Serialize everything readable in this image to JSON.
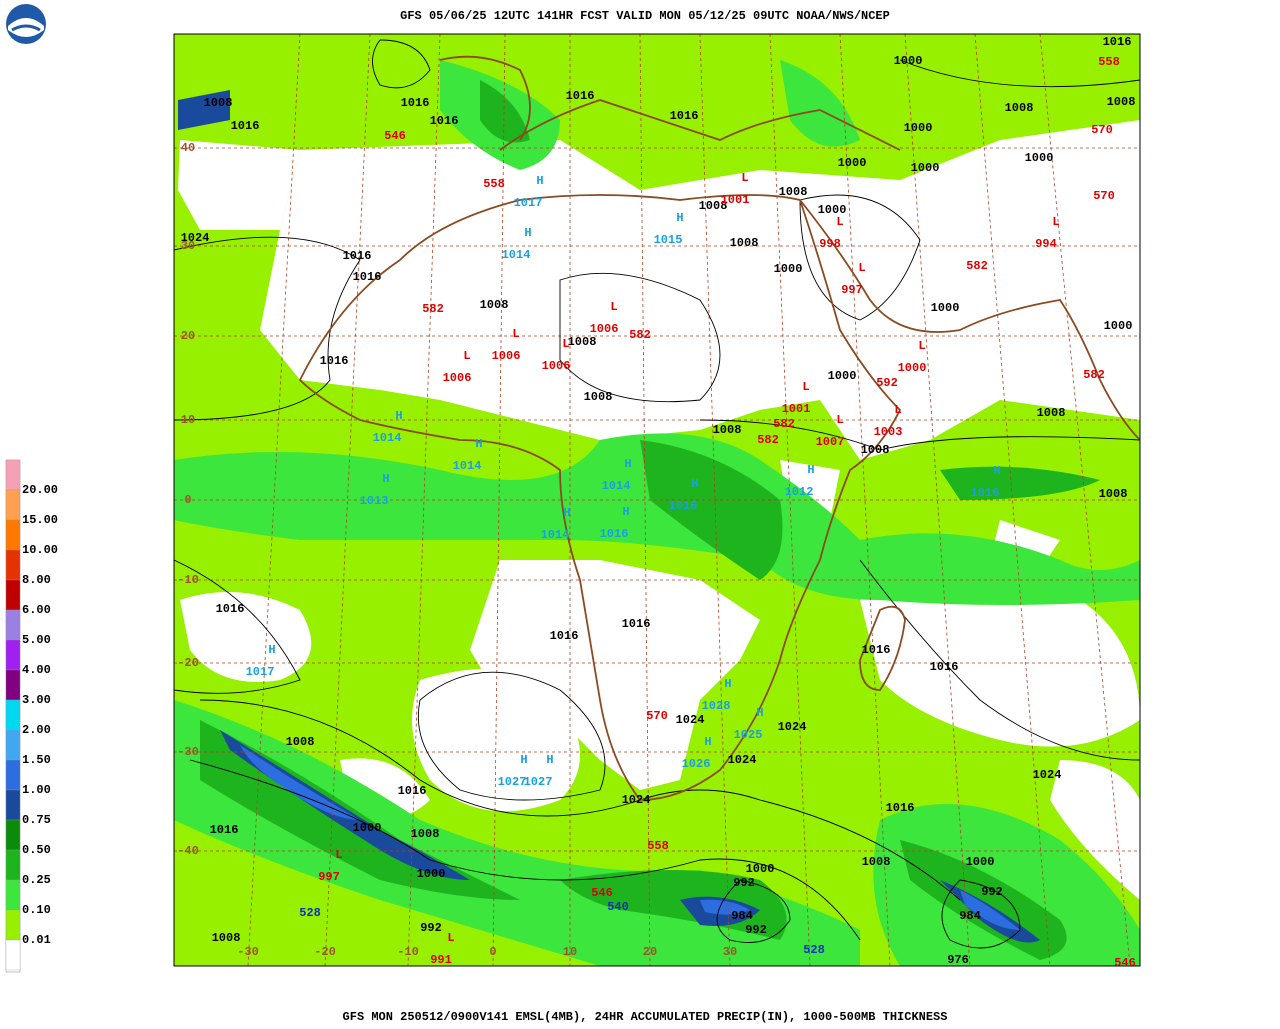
{
  "header": {
    "title": "GFS 05/06/25 12UTC 141HR FCST VALID MON 05/12/25 09UTC NOAA/NWS/NCEP"
  },
  "footer": {
    "title": "GFS MON 250512/0900V141 EMSL(4MB), 24HR ACCUMULATED PRECIP(IN), 1000-500MB THICKNESS"
  },
  "legend": {
    "labels": [
      "20.00",
      "15.00",
      "10.00",
      "8.00",
      "6.00",
      "5.00",
      "4.00",
      "3.00",
      "2.00",
      "1.50",
      "1.00",
      "0.75",
      "0.50",
      "0.25",
      "0.10",
      "0.01"
    ],
    "colors": [
      "#f5a0b4",
      "#ffa050",
      "#ff7800",
      "#e63200",
      "#c00000",
      "#9a80e0",
      "#a020f0",
      "#800080",
      "#00d8f0",
      "#40a8f0",
      "#2c6ee0",
      "#1a4a9c",
      "#0a8c0a",
      "#1eb41e",
      "#3ce63c",
      "#96f000",
      "#ffffff"
    ]
  },
  "map": {
    "lat_labels": [
      "40",
      "30",
      "20",
      "10",
      "0",
      "-10",
      "-20",
      "-30",
      "-40"
    ],
    "lon_labels": [
      "-30",
      "-20",
      "-10",
      "0",
      "10",
      "20",
      "30"
    ],
    "pressure_labels": [
      "1016",
      "1016",
      "1008",
      "1016",
      "1016",
      "1016",
      "1000",
      "1016",
      "1008",
      "1008",
      "1000",
      "1000",
      "1000",
      "1000",
      "1008",
      "1008",
      "1000",
      "1008",
      "1024",
      "1016",
      "1016",
      "1000",
      "1008",
      "1000",
      "1000",
      "1016",
      "1008",
      "1000",
      "1008",
      "1008",
      "1008",
      "1008",
      "1008",
      "1016",
      "1016",
      "1016",
      "1016",
      "1016",
      "1024",
      "1024",
      "1024",
      "1024",
      "1008",
      "1016",
      "1024",
      "1016",
      "1000",
      "1008",
      "1016",
      "1000",
      "1000",
      "1008",
      "1000",
      "992",
      "992",
      "984",
      "984",
      "992",
      "992",
      "1008",
      "976"
    ],
    "highs": [
      {
        "symbol": "H",
        "value": "1017"
      },
      {
        "symbol": "H",
        "value": "1014"
      },
      {
        "symbol": "H",
        "value": "1015"
      },
      {
        "symbol": "H",
        "value": "1014"
      },
      {
        "symbol": "H",
        "value": "1014"
      },
      {
        "symbol": "H",
        "value": "1013"
      },
      {
        "symbol": "H",
        "value": "1014"
      },
      {
        "symbol": "H",
        "value": "1016"
      },
      {
        "symbol": "H",
        "value": "1012"
      },
      {
        "symbol": "H",
        "value": "1014"
      },
      {
        "symbol": "H",
        "value": "1016"
      },
      {
        "symbol": "H",
        "value": "1016"
      },
      {
        "symbol": "H",
        "value": "1017"
      },
      {
        "symbol": "H",
        "value": "1028"
      },
      {
        "symbol": "H",
        "value": "1026"
      },
      {
        "symbol": "H",
        "value": "1025"
      },
      {
        "symbol": "H",
        "value": "1027"
      },
      {
        "symbol": "H",
        "value": "1027"
      }
    ],
    "lows": [
      {
        "symbol": "L",
        "value": "1001"
      },
      {
        "symbol": "L",
        "value": "998"
      },
      {
        "symbol": "L",
        "value": "997"
      },
      {
        "symbol": "L",
        "value": "1006"
      },
      {
        "symbol": "L",
        "value": "1006"
      },
      {
        "symbol": "L",
        "value": "1006"
      },
      {
        "symbol": "L",
        "value": "1006"
      },
      {
        "symbol": "L",
        "value": "1001"
      },
      {
        "symbol": "L",
        "value": "1007"
      },
      {
        "symbol": "L",
        "value": "1003"
      },
      {
        "symbol": "L",
        "value": "1000"
      },
      {
        "symbol": "L",
        "value": "994"
      },
      {
        "symbol": "L",
        "value": "997"
      },
      {
        "symbol": "L",
        "value": "991"
      }
    ],
    "thickness_red": [
      "546",
      "558",
      "582",
      "582",
      "582",
      "582",
      "582",
      "592",
      "582",
      "570",
      "570",
      "558",
      "570",
      "558",
      "546",
      "546"
    ],
    "thickness_blue": [
      "540",
      "528",
      "528"
    ]
  }
}
